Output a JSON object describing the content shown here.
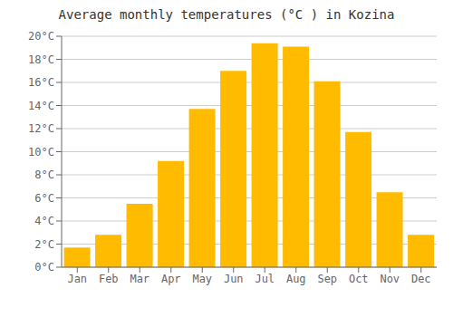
{
  "chart_data": {
    "type": "bar",
    "title": "Average monthly temperatures (°C ) in Kozina",
    "categories": [
      "Jan",
      "Feb",
      "Mar",
      "Apr",
      "May",
      "Jun",
      "Jul",
      "Aug",
      "Sep",
      "Oct",
      "Nov",
      "Dec"
    ],
    "values": [
      1.7,
      2.8,
      5.5,
      9.2,
      13.7,
      17.0,
      19.4,
      19.1,
      16.1,
      11.7,
      6.5,
      2.8
    ],
    "color": "#FFBB00",
    "ylim": [
      0,
      20
    ],
    "yticks": [
      {
        "value": 0,
        "label": "0°C"
      },
      {
        "value": 2,
        "label": "2°C"
      },
      {
        "value": 4,
        "label": "4°C"
      },
      {
        "value": 6,
        "label": "6°C"
      },
      {
        "value": 8,
        "label": "8°C"
      },
      {
        "value": 10,
        "label": "10°C"
      },
      {
        "value": 12,
        "label": "12°C"
      },
      {
        "value": 14,
        "label": "14°C"
      },
      {
        "value": 16,
        "label": "16°C"
      },
      {
        "value": 18,
        "label": "18°C"
      },
      {
        "value": 20,
        "label": "20°C"
      }
    ],
    "grid": true
  }
}
